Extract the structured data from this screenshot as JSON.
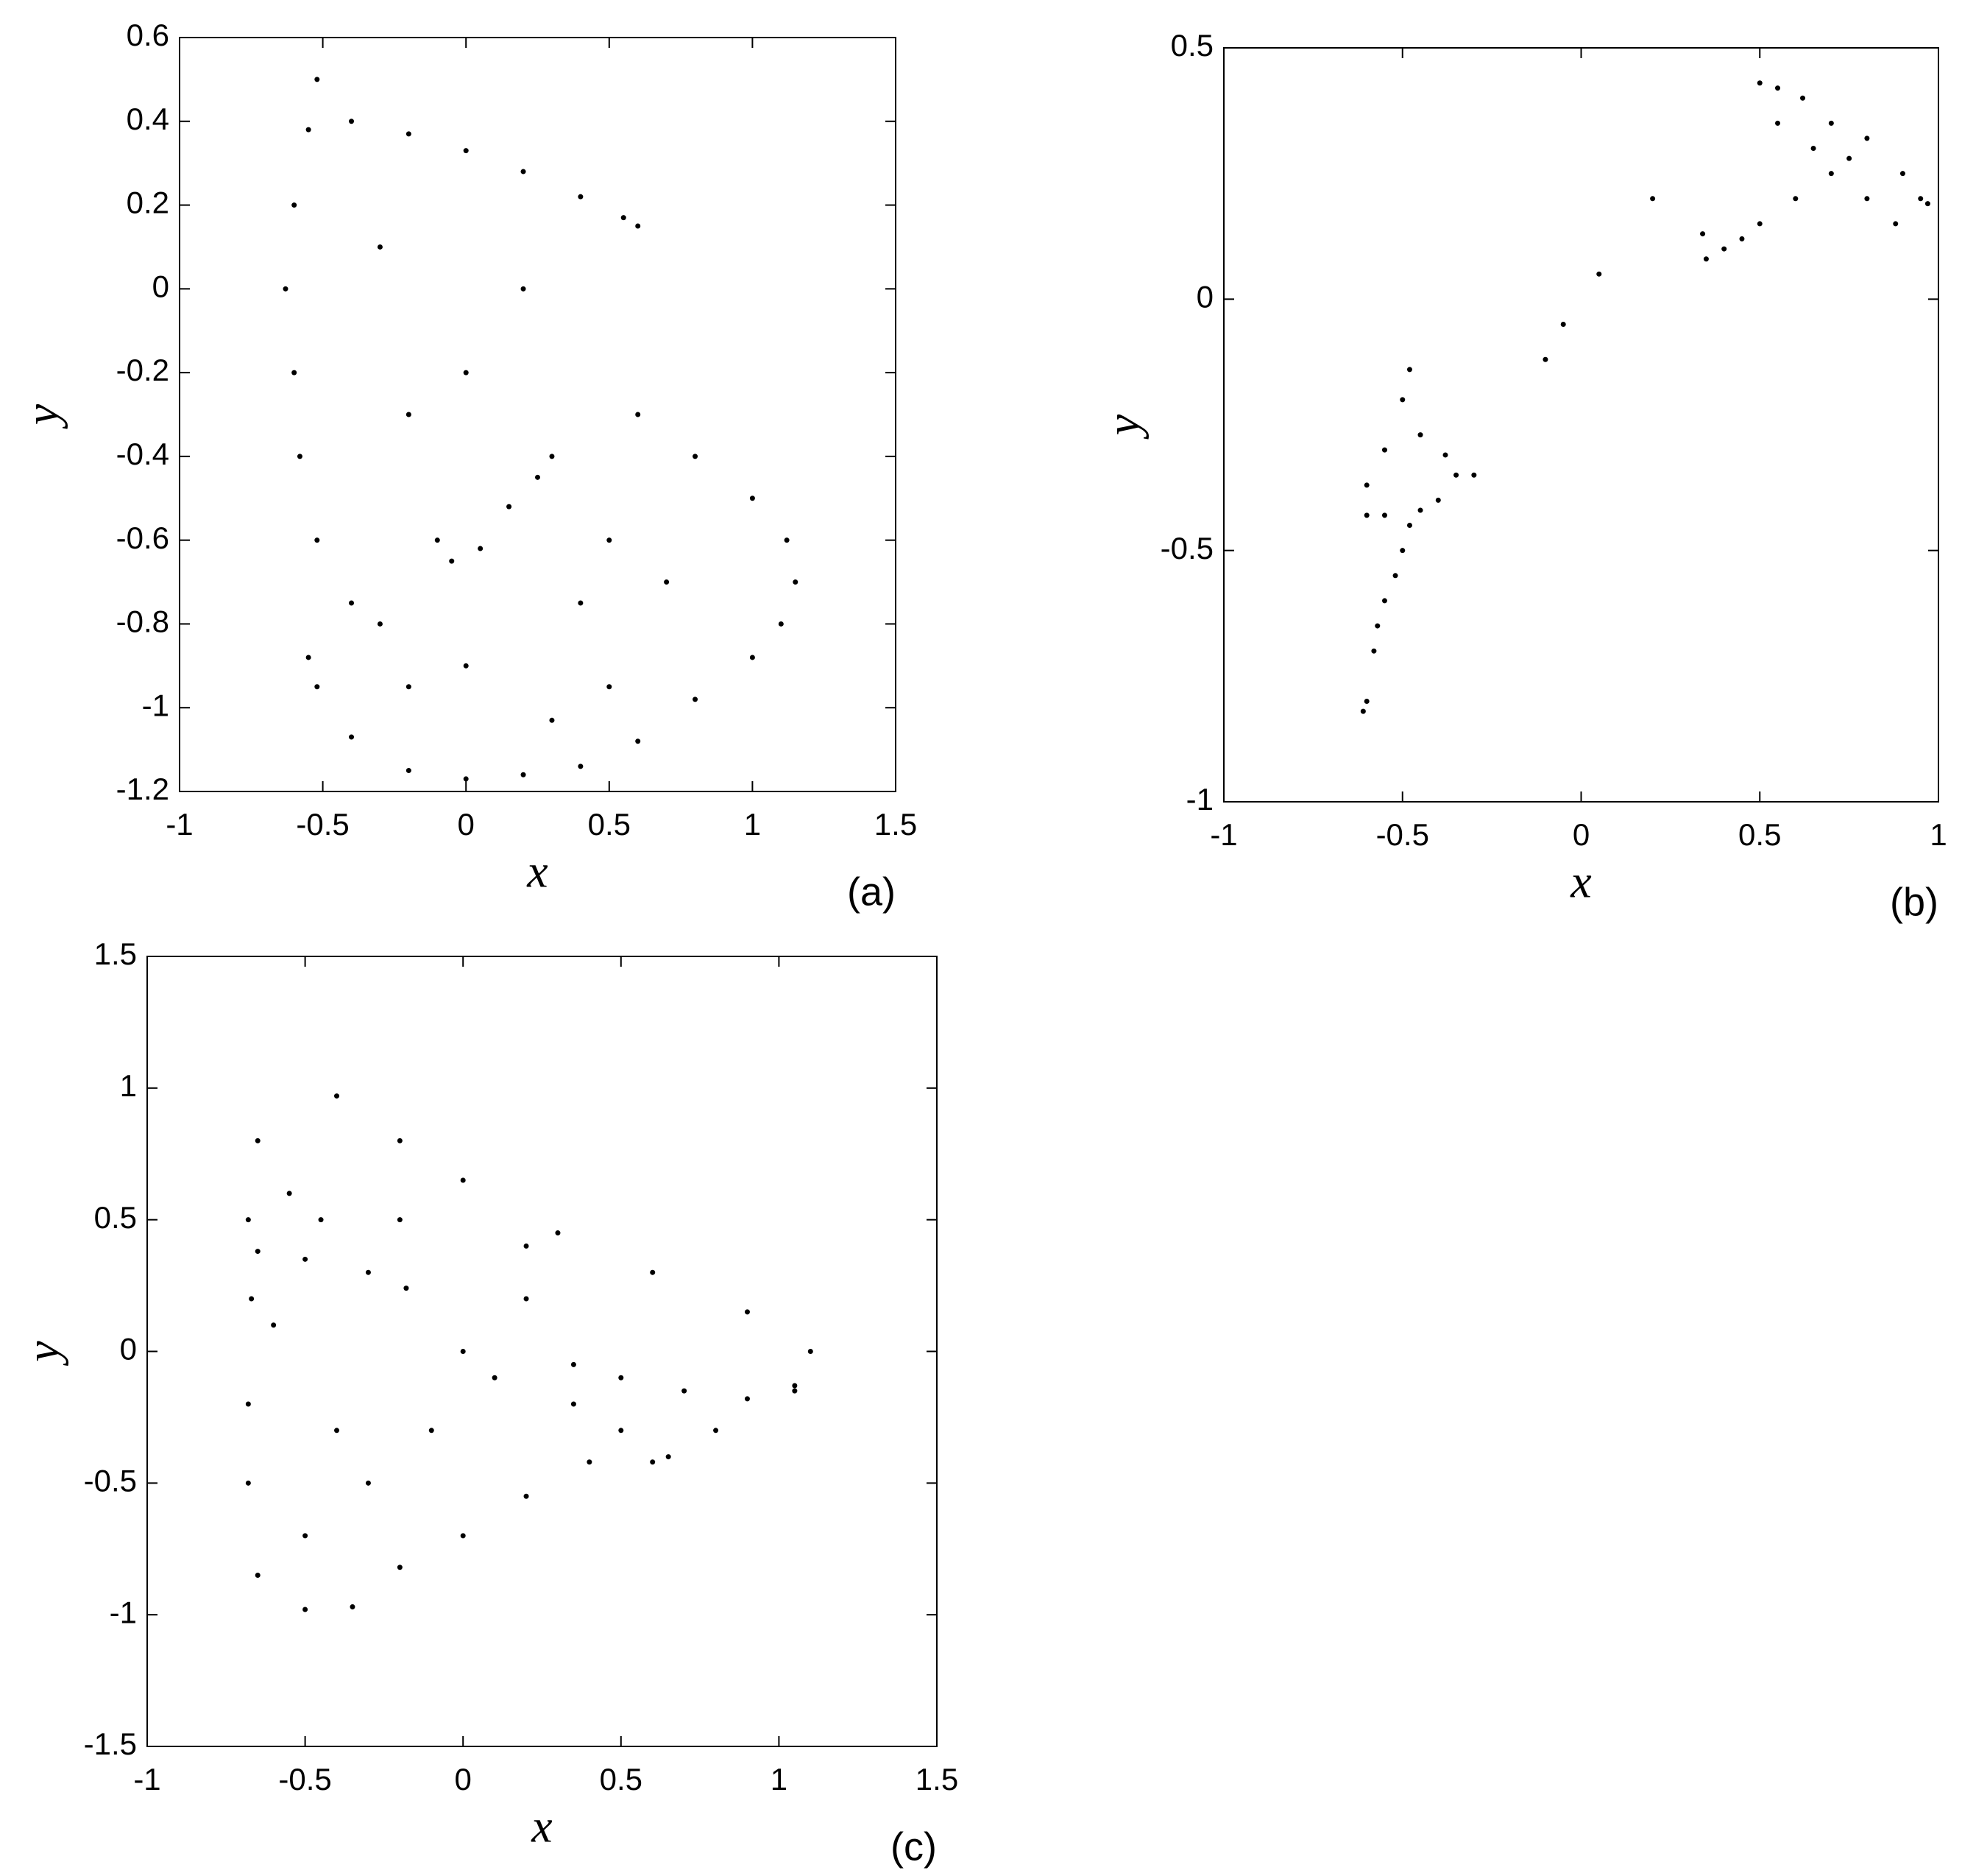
{
  "chart_data": [
    {
      "type": "scatter",
      "panel": "(a)",
      "x_label": "x",
      "y_label": "y",
      "color": "#000000",
      "xlim": [
        -1,
        1.5
      ],
      "ylim": [
        -1.2,
        0.6
      ],
      "xticks": [
        -1,
        -0.5,
        0,
        0.5,
        1,
        1.5
      ],
      "yticks": [
        0.6,
        0.4,
        0.2,
        0,
        -0.2,
        -0.4,
        -0.6,
        -0.8,
        -1,
        -1.2
      ],
      "x": [
        -0.52,
        -0.55,
        -0.6,
        -0.63,
        -0.6,
        -0.58,
        -0.52,
        -0.4,
        -0.4,
        -0.2,
        0,
        0.2,
        0.4,
        0.55,
        0.6,
        0.6,
        0.8,
        1.0,
        1.12,
        1.15,
        1.1,
        1.0,
        0.8,
        0.6,
        0.4,
        0.2,
        0,
        -0.2,
        -0.4,
        -0.52,
        -0.55,
        -0.1,
        -0.05,
        0.05,
        0.15,
        0.25,
        0.3,
        0.5,
        0.0,
        -0.2,
        0.0,
        0.3,
        -0.2,
        0.5,
        0.2,
        -0.3,
        0.7,
        -0.3,
        0.4
      ],
      "values": [
        0.5,
        0.38,
        0.2,
        0.0,
        -0.2,
        -0.4,
        -0.6,
        -0.75,
        0.4,
        0.37,
        0.33,
        0.28,
        0.22,
        0.17,
        0.15,
        -0.3,
        -0.4,
        -0.5,
        -0.6,
        -0.7,
        -0.8,
        -0.88,
        -0.98,
        -1.08,
        -1.14,
        -1.16,
        -1.17,
        -1.15,
        -1.07,
        -0.95,
        -0.88,
        -0.6,
        -0.65,
        -0.62,
        -0.52,
        -0.45,
        -1.03,
        -0.95,
        -0.9,
        -0.95,
        -0.2,
        -0.4,
        -0.3,
        -0.6,
        0.0,
        0.1,
        -0.7,
        -0.8,
        -0.75
      ]
    },
    {
      "type": "scatter",
      "panel": "(b)",
      "x_label": "x",
      "y_label": "y",
      "color": "#000000",
      "xlim": [
        -1,
        1
      ],
      "ylim": [
        -1,
        0.5
      ],
      "xticks": [
        -1,
        -0.5,
        0,
        0.5,
        1
      ],
      "yticks": [
        0.5,
        0,
        -0.5,
        -1
      ],
      "x": [
        0.5,
        0.55,
        0.62,
        0.7,
        0.8,
        0.9,
        0.95,
        0.97,
        0.88,
        0.8,
        0.7,
        0.6,
        0.5,
        0.4,
        0.35,
        0.34,
        0.45,
        0.65,
        0.75,
        0.55,
        0.2,
        0.05,
        -0.1,
        -0.05,
        -0.48,
        -0.5,
        -0.55,
        -0.6,
        -0.6,
        -0.55,
        -0.45,
        -0.4,
        -0.35,
        -0.3,
        -0.38,
        -0.45,
        -0.5,
        -0.55,
        -0.58,
        -0.6,
        -0.61,
        -0.57,
        -0.52,
        -0.48
      ],
      "values": [
        0.43,
        0.42,
        0.4,
        0.35,
        0.32,
        0.25,
        0.2,
        0.19,
        0.15,
        0.2,
        0.25,
        0.2,
        0.15,
        0.1,
        0.08,
        0.13,
        0.12,
        0.3,
        0.28,
        0.35,
        0.2,
        0.05,
        -0.12,
        -0.05,
        -0.14,
        -0.2,
        -0.3,
        -0.37,
        -0.43,
        -0.43,
        -0.42,
        -0.4,
        -0.35,
        -0.35,
        -0.31,
        -0.27,
        -0.5,
        -0.6,
        -0.7,
        -0.8,
        -0.82,
        -0.65,
        -0.55,
        -0.45
      ]
    },
    {
      "type": "scatter",
      "panel": "(c)",
      "x_label": "x",
      "y_label": "y",
      "color": "#000000",
      "xlim": [
        -1,
        1.5
      ],
      "ylim": [
        -1.5,
        1.5
      ],
      "xticks": [
        -1,
        -0.5,
        0,
        0.5,
        1,
        1.5
      ],
      "yticks": [
        1.5,
        1,
        0.5,
        0,
        -0.5,
        -1,
        -1.5
      ],
      "x": [
        -0.65,
        -0.4,
        -0.2,
        0,
        0.3,
        0.6,
        0.9,
        1.1,
        1.05,
        0.8,
        0.6,
        0.4,
        0.2,
        0,
        -0.2,
        -0.35,
        -0.5,
        -0.65,
        -0.68,
        -0.68,
        -0.67,
        -0.68,
        -0.65,
        -0.5,
        -0.3,
        -0.18,
        -0.55,
        -0.45,
        -0.6,
        0.35,
        0.5,
        0.7,
        0.9,
        1.05,
        0.5,
        0.65,
        0.35,
        -0.3,
        -0.1,
        0,
        0.2,
        -0.2,
        0.1,
        -0.4,
        0.2,
        -0.5
      ],
      "values": [
        0.8,
        0.97,
        0.8,
        0.65,
        0.45,
        0.3,
        0.15,
        0.0,
        -0.15,
        -0.3,
        -0.42,
        -0.42,
        -0.55,
        -0.7,
        -0.82,
        -0.97,
        -0.98,
        -0.85,
        -0.5,
        -0.2,
        0.2,
        0.5,
        0.38,
        0.35,
        0.3,
        0.24,
        0.6,
        0.5,
        0.1,
        -0.05,
        -0.1,
        -0.15,
        -0.18,
        -0.13,
        -0.3,
        -0.4,
        -0.2,
        -0.5,
        -0.3,
        0,
        0.2,
        0.5,
        -0.1,
        -0.3,
        0.4,
        -0.7
      ]
    }
  ]
}
